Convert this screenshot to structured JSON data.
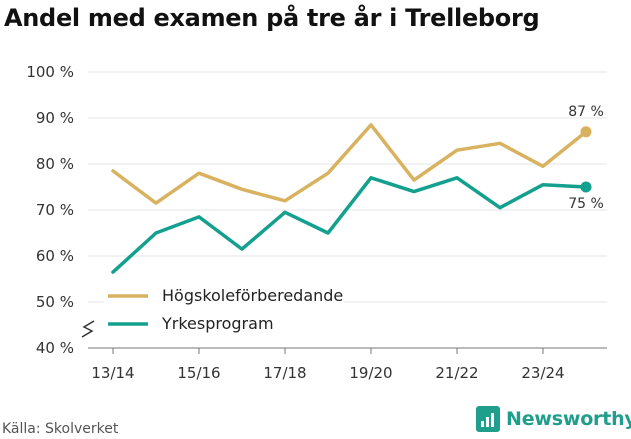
{
  "title": "Andel med examen på tre år i Trelleborg",
  "source": "Källa: Skolverket",
  "brand": "Newsworthy",
  "chart_data": {
    "type": "line",
    "title": "Andel med examen på tre år i Trelleborg",
    "x": [
      "13/14",
      "14/15",
      "15/16",
      "16/17",
      "17/18",
      "18/19",
      "19/20",
      "20/21",
      "21/22",
      "22/23",
      "23/24",
      "24/25"
    ],
    "x_tick_labels": [
      "13/14",
      "15/16",
      "17/18",
      "19/20",
      "21/22",
      "23/24"
    ],
    "y_tick_labels": [
      "40 %",
      "50 %",
      "60 %",
      "70 %",
      "80 %",
      "90 %",
      "100 %"
    ],
    "y_ticks": [
      40,
      50,
      60,
      70,
      80,
      90,
      100
    ],
    "ylim": [
      40,
      100
    ],
    "series": [
      {
        "name": "Högskoleförberedande",
        "color": "#d9b25f",
        "values": [
          78.5,
          71.5,
          78,
          74.5,
          72,
          78,
          88.5,
          76.5,
          83,
          84.5,
          79.5,
          87
        ],
        "end_label": "87 %"
      },
      {
        "name": "Yrkesprogram",
        "color": "#13a08e",
        "values": [
          56.5,
          65,
          68.5,
          61.5,
          69.5,
          65,
          77,
          74,
          77,
          70.5,
          75.5,
          75
        ],
        "end_label": "75 %"
      }
    ],
    "legend_position": "bottom-left",
    "y_axis_break": true
  }
}
